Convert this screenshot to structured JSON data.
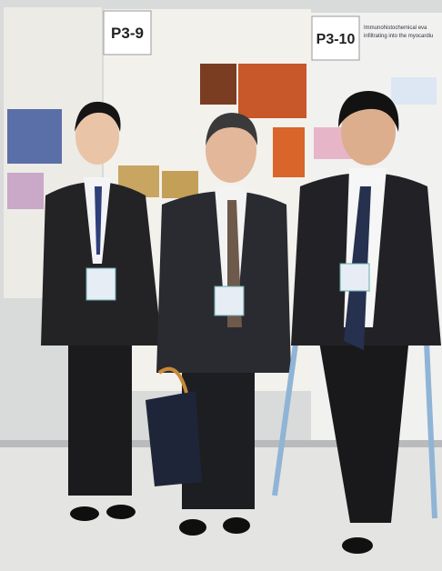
{
  "posters": [
    {
      "label": "P3-9"
    },
    {
      "label": "P3-10",
      "title_lines": [
        "Immunohistochemical eva",
        "infiltrating into the myocardiu"
      ]
    }
  ]
}
